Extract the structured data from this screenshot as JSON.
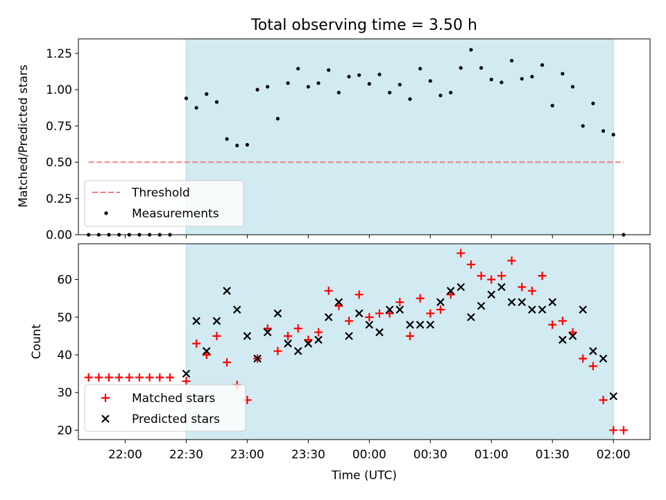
{
  "chart_data": [
    {
      "type": "scatter",
      "title": "Total observing time = 3.50 h",
      "ylabel": "Matched/Predicted stars",
      "xlabel": "",
      "ylim": [
        0,
        1.35
      ],
      "yticks": [
        0,
        0.25,
        0.5,
        0.75,
        1.0,
        1.25
      ],
      "ytick_labels": [
        "0.00",
        "0.25",
        "0.50",
        "0.75",
        "1.00",
        "1.25"
      ],
      "x_unit": "minutes after 21:30 UTC",
      "xlim": [
        37,
        318
      ],
      "observing_window": [
        90,
        300
      ],
      "threshold": {
        "value": 0.5,
        "x": [
          42,
          305
        ],
        "color": "#f08080"
      },
      "shade_color": "#add8e6",
      "legend": {
        "position": "lower left",
        "entries": [
          "Threshold",
          "Measurements"
        ]
      },
      "series": [
        {
          "name": "Measurements",
          "color": "#000000",
          "x": [
            42,
            47,
            52,
            57,
            62,
            67,
            72,
            77,
            82,
            90,
            95,
            100,
            105,
            110,
            115,
            120,
            125,
            130,
            135,
            140,
            145,
            150,
            155,
            160,
            165,
            170,
            175,
            180,
            185,
            190,
            195,
            200,
            205,
            210,
            215,
            220,
            225,
            230,
            235,
            240,
            245,
            250,
            255,
            260,
            265,
            270,
            275,
            280,
            285,
            290,
            295,
            300,
            305
          ],
          "y": [
            0,
            0,
            0,
            0,
            0,
            0,
            0,
            0,
            0,
            0.94,
            0.875,
            0.97,
            0.915,
            0.66,
            0.615,
            0.62,
            1.0,
            1.02,
            0.8,
            1.045,
            1.145,
            1.02,
            1.045,
            1.135,
            0.98,
            1.09,
            1.1,
            1.04,
            1.105,
            0.98,
            1.035,
            0.935,
            1.145,
            1.06,
            0.96,
            0.98,
            1.15,
            1.275,
            1.15,
            1.07,
            1.05,
            1.2,
            1.075,
            1.09,
            1.17,
            0.89,
            1.11,
            1.02,
            0.75,
            0.905,
            0.715,
            0.69,
            0.0
          ]
        }
      ]
    },
    {
      "type": "scatter",
      "title": "",
      "xlabel": "Time (UTC)",
      "ylabel": "Count",
      "ylim": [
        17.5,
        69.5
      ],
      "yticks": [
        20,
        30,
        40,
        50,
        60
      ],
      "x_unit": "minutes after 21:30 UTC",
      "xlim": [
        37,
        318
      ],
      "xticks": [
        60,
        90,
        120,
        150,
        180,
        210,
        240,
        270,
        300
      ],
      "xtick_labels": [
        "22:00",
        "22:30",
        "23:00",
        "23:30",
        "00:00",
        "00:30",
        "01:00",
        "01:30",
        "02:00"
      ],
      "observing_window": [
        90,
        300
      ],
      "shade_color": "#add8e6",
      "legend": {
        "position": "lower left",
        "entries": [
          "Matched stars",
          "Predicted stars"
        ]
      },
      "series": [
        {
          "name": "Matched stars",
          "marker": "plus",
          "color": "#ff0000",
          "x": [
            42,
            47,
            52,
            57,
            62,
            67,
            72,
            77,
            82,
            90,
            95,
            100,
            105,
            110,
            115,
            120,
            125,
            130,
            135,
            140,
            145,
            150,
            155,
            160,
            165,
            170,
            175,
            180,
            185,
            190,
            195,
            200,
            205,
            210,
            215,
            220,
            225,
            230,
            235,
            240,
            245,
            250,
            255,
            260,
            265,
            270,
            275,
            280,
            285,
            290,
            295,
            300,
            305
          ],
          "y": [
            34,
            34,
            34,
            34,
            34,
            34,
            34,
            34,
            34,
            33,
            43,
            40,
            45,
            38,
            32,
            28,
            39,
            47,
            41,
            45,
            47,
            44,
            46,
            57,
            53,
            49,
            56,
            50,
            51,
            51,
            54,
            45,
            55,
            51,
            52,
            56,
            67,
            64,
            61,
            60,
            61,
            65,
            58,
            57,
            61,
            48,
            49,
            46,
            39,
            37,
            28,
            20,
            20
          ]
        },
        {
          "name": "Predicted stars",
          "marker": "x",
          "color": "#000000",
          "x": [
            90,
            95,
            100,
            105,
            110,
            115,
            120,
            125,
            130,
            135,
            140,
            145,
            150,
            155,
            160,
            165,
            170,
            175,
            180,
            185,
            190,
            195,
            200,
            205,
            210,
            215,
            220,
            225,
            230,
            235,
            240,
            245,
            250,
            255,
            260,
            265,
            270,
            275,
            280,
            285,
            290,
            295,
            300
          ],
          "y": [
            35,
            49,
            41,
            49,
            57,
            52,
            45,
            39,
            46,
            51,
            43,
            41,
            43,
            44,
            50,
            54,
            45,
            51,
            48,
            46,
            52,
            52,
            48,
            48,
            48,
            54,
            57,
            58,
            50,
            53,
            56,
            58,
            54,
            54,
            52,
            52,
            54,
            44,
            45,
            52,
            41,
            39,
            29
          ]
        }
      ]
    }
  ]
}
